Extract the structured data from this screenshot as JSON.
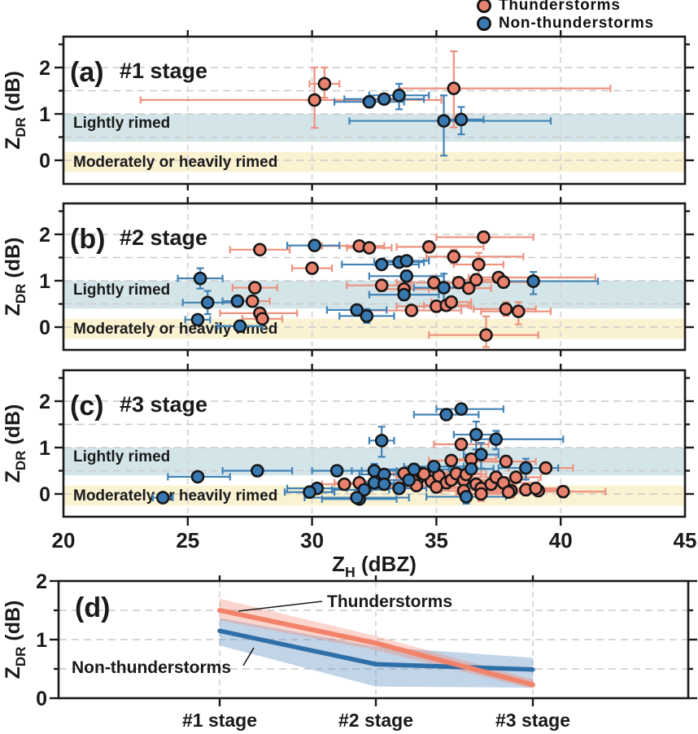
{
  "figure": {
    "legend": [
      {
        "label": "Thunderstorms",
        "series": "thunderstorms"
      },
      {
        "label": "Non-thunderstorms",
        "series": "non_thunderstorms"
      }
    ],
    "x_axis": {
      "label_pre": "Z",
      "label_sub": "H",
      "label_post": " (dBZ)",
      "ticks": [
        20,
        25,
        30,
        35,
        40,
        45
      ],
      "range": [
        20,
        45
      ]
    },
    "y_axis": {
      "label_pre": "Z",
      "label_sub": "DR",
      "label_post": " (dB)",
      "ticks": [
        0,
        1,
        2
      ],
      "range": [
        -0.5,
        2.67
      ]
    },
    "bands": [
      {
        "name": "lightly-rimed",
        "label": "Lightly rimed",
        "from": 0.4,
        "to": 1.0,
        "color": "#d4e5e9"
      },
      {
        "name": "moderately-rimed",
        "label": "Moderately or heavily rimed",
        "from": -0.25,
        "to": 0.18,
        "color": "#fbf2d2"
      }
    ],
    "colors": {
      "thunderstorms": "#e8826e",
      "non_thunderstorms": "#3979b1",
      "thunderstorms_err": "#ec927f",
      "non_thunderstorms_err": "#4283b6",
      "thunderstorms_line": "#f2836b",
      "non_thunderstorms_line": "#2f6fa8",
      "thunderstorms_band": "rgba(242,131,107,0.33)",
      "non_thunderstorms_band": "rgba(93,143,194,0.38)",
      "marker_edge": "#151515",
      "axis": "#1a1a1a",
      "grid": "#cacaca",
      "text": "#1a1a1a"
    }
  },
  "chart_data": [
    {
      "panel": "a",
      "type": "scatter",
      "label": "(a)",
      "title": "#1 stage",
      "point_format": [
        "ZH_dBZ",
        "ZDR_dB",
        "xerr_minus",
        "xerr_plus",
        "yerr_minus",
        "yerr_plus"
      ],
      "series": [
        {
          "name": "Thunderstorms",
          "points": [
            [
              30.5,
              1.65,
              0.6,
              0.6,
              0.3,
              0.35
            ],
            [
              30.1,
              1.3,
              7.0,
              5.1,
              0.6,
              0.7
            ],
            [
              35.7,
              1.55,
              2.2,
              6.3,
              0.84,
              0.8
            ]
          ]
        },
        {
          "name": "Non-thunderstorms",
          "points": [
            [
              32.3,
              1.26,
              1.4,
              1.4,
              0.12,
              0.12
            ],
            [
              32.9,
              1.32,
              1.6,
              1.6,
              0.1,
              0.1
            ],
            [
              33.5,
              1.4,
              1.2,
              1.2,
              0.3,
              0.25
            ],
            [
              35.3,
              0.85,
              3.8,
              4.3,
              0.75,
              0.55
            ],
            [
              36.0,
              0.88,
              0.9,
              0.9,
              0.32,
              0.27
            ]
          ]
        }
      ]
    },
    {
      "panel": "b",
      "type": "scatter",
      "label": "(b)",
      "title": "#2 stage",
      "point_format": [
        "ZH_dBZ",
        "ZDR_dB",
        "xerr_minus",
        "xerr_plus",
        "yerr_minus",
        "yerr_plus"
      ],
      "series": [
        {
          "name": "Thunderstorms",
          "points": [
            [
              27.9,
              1.67,
              1.2,
              1.2,
              0.1,
              0.1
            ],
            [
              30.0,
              1.27,
              0.8,
              0.8,
              0.12,
              0.12
            ],
            [
              31.9,
              1.75,
              1.5,
              1.0,
              0.1,
              0.1
            ],
            [
              32.3,
              1.71,
              0.9,
              0.9,
              0.1,
              0.1
            ],
            [
              34.7,
              1.73,
              1.3,
              2.2,
              0.12,
              0.12
            ],
            [
              36.9,
              1.94,
              1.9,
              2.0,
              0.12,
              0.12
            ],
            [
              35.7,
              1.52,
              1.1,
              2.8,
              0.15,
              0.15
            ],
            [
              36.7,
              1.35,
              1.0,
              1.0,
              0.3,
              0.25
            ],
            [
              35.9,
              0.96,
              0.8,
              0.8,
              0.1,
              0.1
            ],
            [
              36.6,
              1.02,
              0.9,
              0.9,
              0.12,
              0.12
            ],
            [
              37.5,
              1.07,
              1.2,
              3.9,
              0.1,
              0.1
            ],
            [
              37.7,
              0.97,
              1.0,
              1.0,
              0.12,
              0.12
            ],
            [
              36.3,
              0.84,
              0.9,
              0.9,
              0.1,
              0.1
            ],
            [
              34.9,
              0.96,
              1.5,
              1.5,
              0.15,
              0.15
            ],
            [
              32.8,
              0.9,
              1.4,
              1.2,
              0.12,
              0.12
            ],
            [
              33.7,
              0.82,
              1.0,
              1.0,
              0.1,
              0.1
            ],
            [
              35.0,
              0.45,
              1.6,
              1.4,
              0.12,
              0.12
            ],
            [
              35.4,
              0.47,
              0.9,
              0.9,
              0.1,
              0.1
            ],
            [
              35.6,
              0.54,
              0.8,
              0.8,
              0.1,
              0.1
            ],
            [
              37.8,
              0.39,
              1.3,
              1.2,
              0.15,
              0.15
            ],
            [
              38.3,
              0.34,
              1.5,
              1.3,
              0.28,
              0.2
            ],
            [
              34.0,
              0.36,
              2.2,
              2.0,
              0.12,
              0.12
            ],
            [
              37.0,
              -0.17,
              2.3,
              2.1,
              0.26,
              0.4
            ],
            [
              27.7,
              0.85,
              0.9,
              0.9,
              0.1,
              0.1
            ],
            [
              27.6,
              0.56,
              0.7,
              0.7,
              0.08,
              0.08
            ],
            [
              27.9,
              0.3,
              1.6,
              1.5,
              0.12,
              0.12
            ],
            [
              28.0,
              0.18,
              0.8,
              0.8,
              0.1,
              0.1
            ]
          ]
        },
        {
          "name": "Non-thunderstorms",
          "points": [
            [
              25.5,
              1.05,
              0.9,
              0.9,
              0.22,
              0.22
            ],
            [
              25.8,
              0.53,
              1.0,
              1.0,
              0.25,
              0.25
            ],
            [
              27.0,
              0.56,
              0.6,
              0.6,
              0.12,
              0.12
            ],
            [
              25.4,
              0.16,
              0.5,
              0.5,
              0.1,
              0.1
            ],
            [
              27.1,
              0.02,
              0.9,
              0.9,
              0.1,
              0.1
            ],
            [
              30.1,
              1.76,
              1.1,
              1.0,
              0.1,
              0.1
            ],
            [
              32.8,
              1.35,
              1.6,
              1.5,
              0.1,
              0.1
            ],
            [
              33.5,
              1.4,
              1.0,
              1.0,
              0.1,
              0.1
            ],
            [
              33.8,
              1.43,
              0.9,
              0.9,
              0.1,
              0.1
            ],
            [
              33.8,
              1.1,
              1.5,
              1.5,
              0.12,
              0.12
            ],
            [
              35.3,
              0.85,
              1.2,
              1.2,
              0.35,
              0.3
            ],
            [
              33.7,
              0.7,
              1.4,
              1.4,
              0.12,
              0.12
            ],
            [
              31.8,
              0.37,
              1.2,
              1.2,
              0.1,
              0.1
            ],
            [
              32.2,
              0.24,
              1.1,
              1.1,
              0.15,
              0.15
            ],
            [
              38.9,
              0.99,
              1.4,
              2.6,
              0.28,
              0.2
            ]
          ]
        }
      ]
    },
    {
      "panel": "c",
      "type": "scatter",
      "label": "(c)",
      "title": "#3 stage",
      "point_format": [
        "ZH_dBZ",
        "ZDR_dB",
        "xerr_minus",
        "xerr_plus",
        "yerr_minus",
        "yerr_plus"
      ],
      "series": [
        {
          "name": "Thunderstorms",
          "points": [
            [
              31.3,
              0.21,
              0.9,
              0.9,
              0.1,
              0.1
            ],
            [
              31.9,
              0.24,
              1.0,
              1.0,
              0.1,
              0.1
            ],
            [
              33.7,
              0.44,
              1.2,
              1.2,
              0.1,
              0.1
            ],
            [
              34.3,
              0.36,
              0.9,
              0.9,
              0.1,
              0.1
            ],
            [
              34.4,
              0.44,
              1.1,
              1.1,
              0.1,
              0.1
            ],
            [
              34.8,
              0.27,
              1.4,
              1.4,
              0.12,
              0.12
            ],
            [
              35.1,
              0.39,
              1.0,
              1.0,
              0.1,
              0.1
            ],
            [
              35.4,
              0.24,
              1.2,
              1.2,
              0.12,
              0.12
            ],
            [
              35.6,
              0.3,
              0.9,
              0.9,
              0.08,
              0.08
            ],
            [
              35.8,
              0.44,
              1.0,
              1.0,
              0.1,
              0.1
            ],
            [
              36.1,
              0.3,
              1.3,
              1.3,
              0.1,
              0.1
            ],
            [
              36.2,
              0.42,
              0.8,
              0.8,
              0.1,
              0.1
            ],
            [
              36.6,
              0.21,
              1.1,
              1.1,
              0.12,
              0.12
            ],
            [
              36.8,
              0.12,
              1.3,
              1.3,
              0.15,
              0.15
            ],
            [
              37.2,
              0.21,
              1.0,
              1.0,
              0.1,
              0.1
            ],
            [
              37.4,
              0.36,
              1.2,
              1.2,
              0.1,
              0.1
            ],
            [
              37.7,
              0.24,
              1.4,
              1.4,
              0.12,
              0.12
            ],
            [
              38.0,
              0.07,
              1.1,
              1.1,
              0.15,
              0.15
            ],
            [
              38.2,
              0.36,
              1.0,
              1.0,
              0.1,
              0.1
            ],
            [
              38.6,
              0.09,
              1.3,
              1.3,
              0.12,
              0.12
            ],
            [
              39.1,
              0.07,
              1.2,
              1.2,
              0.1,
              0.1
            ],
            [
              39.4,
              0.56,
              1.5,
              1.1,
              0.12,
              0.12
            ],
            [
              40.1,
              0.05,
              1.2,
              1.7,
              0.12,
              0.12
            ],
            [
              39.0,
              0.12,
              1.0,
              1.0,
              0.1,
              0.1
            ],
            [
              36.0,
              1.07,
              1.1,
              1.1,
              0.12,
              0.12
            ],
            [
              35.6,
              0.72,
              0.9,
              0.9,
              0.1,
              0.1
            ],
            [
              36.4,
              0.75,
              1.0,
              1.0,
              0.1,
              0.1
            ],
            [
              37.8,
              0.7,
              1.2,
              1.2,
              0.12,
              0.12
            ],
            [
              34.5,
              0.43,
              1.0,
              1.0,
              0.1,
              0.1
            ],
            [
              36.1,
              0.07,
              0.9,
              0.9,
              0.12,
              0.12
            ],
            [
              36.8,
              0.0,
              1.0,
              1.0,
              0.15,
              0.15
            ],
            [
              37.9,
              0.04,
              1.1,
              1.1,
              0.1,
              0.1
            ],
            [
              35.0,
              0.15,
              1.3,
              1.3,
              0.1,
              0.1
            ],
            [
              34.2,
              0.18,
              1.0,
              1.0,
              0.1,
              0.1
            ]
          ]
        },
        {
          "name": "Non-thunderstorms",
          "points": [
            [
              24.0,
              -0.08,
              0.4,
              0.4,
              0.08,
              0.08
            ],
            [
              25.4,
              0.37,
              1.2,
              1.3,
              0.1,
              0.1
            ],
            [
              27.8,
              0.5,
              1.4,
              1.4,
              0.1,
              0.1
            ],
            [
              31.0,
              0.5,
              1.0,
              1.0,
              0.1,
              0.1
            ],
            [
              30.2,
              0.12,
              1.2,
              1.2,
              0.1,
              0.1
            ],
            [
              29.9,
              0.04,
              1.0,
              1.0,
              0.1,
              0.1
            ],
            [
              31.9,
              -0.11,
              1.5,
              1.5,
              0.1,
              0.1
            ],
            [
              32.8,
              1.15,
              0.5,
              0.5,
              0.35,
              0.3
            ],
            [
              35.4,
              1.71,
              1.3,
              1.3,
              0.1,
              0.1
            ],
            [
              36.0,
              1.83,
              1.0,
              1.7,
              0.1,
              0.1
            ],
            [
              36.6,
              1.28,
              0.9,
              0.9,
              0.32,
              0.28
            ],
            [
              37.4,
              1.18,
              1.0,
              2.7,
              0.22,
              0.18
            ],
            [
              36.8,
              0.85,
              0.7,
              0.7,
              0.3,
              0.25
            ],
            [
              34.9,
              0.59,
              1.2,
              1.2,
              0.1,
              0.1
            ],
            [
              32.5,
              0.5,
              0.9,
              0.9,
              0.15,
              0.15
            ],
            [
              32.9,
              0.42,
              1.0,
              1.0,
              0.1,
              0.1
            ],
            [
              32.5,
              0.24,
              0.8,
              0.8,
              0.1,
              0.1
            ],
            [
              32.9,
              0.21,
              0.9,
              0.9,
              0.1,
              0.1
            ],
            [
              33.5,
              0.12,
              1.1,
              1.1,
              0.12,
              0.12
            ],
            [
              32.1,
              0.09,
              1.3,
              1.0,
              0.1,
              0.1
            ],
            [
              31.8,
              -0.08,
              2.1,
              2.1,
              0.1,
              0.1
            ],
            [
              34.1,
              0.53,
              1.5,
              1.5,
              0.12,
              0.12
            ],
            [
              38.6,
              0.56,
              1.1,
              1.3,
              0.25,
              0.2
            ],
            [
              36.2,
              -0.06,
              1.6,
              1.6,
              0.15,
              0.25
            ],
            [
              33.9,
              0.3,
              1.0,
              1.0,
              0.1,
              0.1
            ],
            [
              36.4,
              0.54,
              0.9,
              0.9,
              0.1,
              0.1
            ]
          ]
        }
      ]
    },
    {
      "panel": "d",
      "type": "line",
      "label": "(d)",
      "categories": [
        "#1 stage",
        "#2 stage",
        "#3 stage"
      ],
      "ylim": [
        0,
        2
      ],
      "series": [
        {
          "name": "Thunderstorms",
          "mean": [
            1.5,
            0.94,
            0.23
          ],
          "lower": [
            1.33,
            0.82,
            0.16
          ],
          "upper": [
            1.7,
            1.06,
            0.32
          ]
        },
        {
          "name": "Non-thunderstorms",
          "mean": [
            1.15,
            0.58,
            0.49
          ],
          "lower": [
            0.9,
            0.2,
            0.18
          ],
          "upper": [
            1.37,
            0.88,
            0.69
          ]
        }
      ],
      "annotations": [
        "Thunderstorms",
        "Non-thunderstorms"
      ]
    }
  ]
}
